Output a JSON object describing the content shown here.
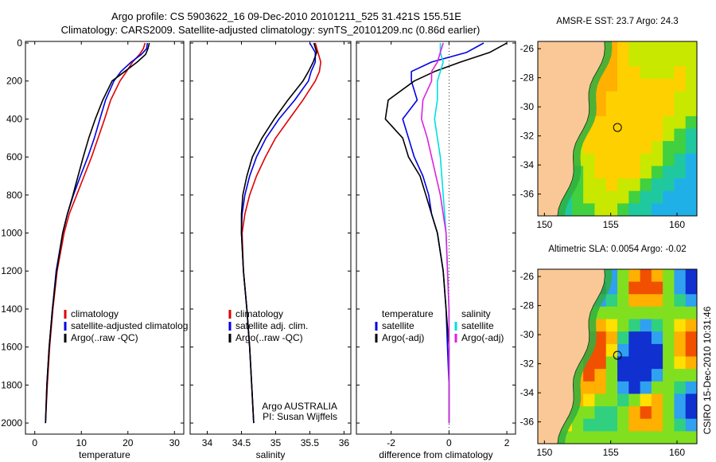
{
  "header": {
    "title_line1": "Argo profile: CS 5903622_16 09-Dec-2010 20101211_525 31.421S 155.51E",
    "title_line2": "Climatology: CARS2009. Satellite-adjusted climatology: synTS_20101209.nc (0.86d earlier)"
  },
  "colors": {
    "red": "#e00000",
    "blue": "#0000e6",
    "black": "#000000",
    "cyan": "#00e0e0",
    "magenta": "#e020e0"
  },
  "credit": "CSIRO 15-Dec-2010 10:31:46",
  "chart_data": [
    {
      "id": "temperature",
      "type": "line",
      "xlabel": "temperature",
      "xlim": [
        -2,
        32
      ],
      "ylim": [
        0,
        2050
      ],
      "y_inverted": true,
      "xticks": [
        0,
        10,
        20,
        30
      ],
      "yticks": [
        0,
        200,
        400,
        600,
        800,
        1000,
        1200,
        1400,
        1600,
        1800,
        2000
      ],
      "legend": {
        "position": "center-right",
        "entries": [
          {
            "label": "climatology",
            "color": "#e00000"
          },
          {
            "label": "satellite-adjusted climatolog",
            "color": "#0000e6"
          },
          {
            "label": "Argo(..raw -QC)",
            "color": "#000000"
          }
        ]
      },
      "series": [
        {
          "name": "climatology",
          "color": "#e00000",
          "depth": [
            0,
            30,
            60,
            100,
            150,
            200,
            300,
            400,
            500,
            600,
            700,
            800,
            900,
            1000,
            1200,
            1400,
            1600,
            1800,
            2000
          ],
          "values": [
            23.7,
            23.3,
            22.5,
            21.0,
            19.7,
            18.3,
            16.3,
            15.0,
            13.6,
            12.2,
            10.6,
            9.0,
            7.4,
            6.3,
            4.8,
            3.9,
            3.2,
            2.7,
            2.3
          ]
        },
        {
          "name": "satellite-adjusted climatology",
          "color": "#0000e6",
          "depth": [
            0,
            30,
            60,
            100,
            150,
            200,
            300,
            400,
            500,
            600,
            700,
            800,
            900,
            1000,
            1200,
            1400,
            1600,
            1800,
            2000
          ],
          "values": [
            24.2,
            24.0,
            22.9,
            20.7,
            18.5,
            17.0,
            15.2,
            14.0,
            12.8,
            11.4,
            9.8,
            8.3,
            7.0,
            6.0,
            4.6,
            3.8,
            3.1,
            2.6,
            2.3
          ]
        },
        {
          "name": "Argo(..raw -QC)",
          "color": "#000000",
          "depth": [
            0,
            30,
            60,
            100,
            150,
            200,
            300,
            400,
            500,
            600,
            700,
            800,
            900,
            1000,
            1200,
            1400,
            1600,
            1800,
            2000
          ],
          "values": [
            24.6,
            24.3,
            23.8,
            22.0,
            19.3,
            16.6,
            14.6,
            13.0,
            11.6,
            10.4,
            9.3,
            8.2,
            7.0,
            6.0,
            4.7,
            3.8,
            3.1,
            2.6,
            2.3
          ]
        }
      ]
    },
    {
      "id": "salinity",
      "type": "line",
      "xlabel": "salinity",
      "xlim": [
        33.75,
        36.1
      ],
      "ylim": [
        0,
        2050
      ],
      "y_inverted": true,
      "xticks": [
        34,
        34.5,
        35,
        35.5,
        36
      ],
      "legend": {
        "position": "center-right",
        "entries": [
          {
            "label": "climatology",
            "color": "#e00000"
          },
          {
            "label": "satellite adj. clim.",
            "color": "#0000e6"
          },
          {
            "label": "Argo(..raw -QC)",
            "color": "#000000"
          }
        ]
      },
      "annotations": [
        "Argo AUSTRALIA",
        "PI: Susan Wijffels"
      ],
      "series": [
        {
          "name": "climatology",
          "color": "#e00000",
          "depth": [
            0,
            50,
            100,
            150,
            200,
            300,
            400,
            500,
            600,
            700,
            800,
            900,
            1000,
            1200,
            1400,
            1600,
            1800,
            2000
          ],
          "values": [
            35.58,
            35.62,
            35.66,
            35.64,
            35.58,
            35.4,
            35.2,
            35.0,
            34.85,
            34.72,
            34.62,
            34.55,
            34.51,
            34.53,
            34.58,
            34.62,
            34.65,
            34.68
          ]
        },
        {
          "name": "satellite adj. clim.",
          "color": "#0000e6",
          "depth": [
            0,
            50,
            100,
            150,
            200,
            300,
            400,
            500,
            600,
            700,
            800,
            900,
            1000,
            1200,
            1400,
            1600,
            1800,
            2000
          ],
          "values": [
            35.5,
            35.58,
            35.58,
            35.52,
            35.48,
            35.28,
            35.05,
            34.86,
            34.72,
            34.62,
            34.55,
            34.51,
            34.5,
            34.53,
            34.58,
            34.62,
            34.65,
            34.68
          ]
        },
        {
          "name": "Argo(..raw -QC)",
          "color": "#000000",
          "depth": [
            0,
            50,
            100,
            150,
            200,
            300,
            400,
            500,
            600,
            700,
            800,
            900,
            1000,
            1200,
            1400,
            1600,
            1800,
            2000
          ],
          "values": [
            35.56,
            35.6,
            35.55,
            35.48,
            35.4,
            35.18,
            34.98,
            34.8,
            34.66,
            34.58,
            34.52,
            34.5,
            34.5,
            34.53,
            34.58,
            34.62,
            34.65,
            34.68
          ]
        }
      ]
    },
    {
      "id": "difference",
      "type": "line",
      "xlabel": "difference from climatology",
      "xlim": [
        -3.2,
        2.3
      ],
      "ylim": [
        0,
        2050
      ],
      "y_inverted": true,
      "xticks": [
        -2,
        0,
        2
      ],
      "legend": {
        "position": "center",
        "entries": [
          {
            "label": "temperature",
            "color": ""
          },
          {
            "label": "satellite",
            "color": "#0000e6"
          },
          {
            "label": "Argo(-adj)",
            "color": "#000000"
          },
          {
            "label": "salinity",
            "color": ""
          },
          {
            "label": "satellite",
            "color": "#00e0e0"
          },
          {
            "label": "Argo(-adj)",
            "color": "#e020e0"
          }
        ]
      },
      "series": [
        {
          "name": "temperature satellite",
          "color": "#0000e6",
          "depth": [
            0,
            50,
            100,
            150,
            200,
            300,
            400,
            500,
            600,
            700,
            800,
            900,
            1000,
            1200,
            1400,
            1600,
            1800,
            2000
          ],
          "values": [
            1.2,
            0.6,
            -0.6,
            -1.3,
            -1.3,
            -1.1,
            -1.6,
            -1.4,
            -1.2,
            -0.9,
            -0.7,
            -0.6,
            -0.4,
            -0.2,
            -0.1,
            -0.05,
            0,
            0
          ]
        },
        {
          "name": "temperature Argo(-adj)",
          "color": "#000000",
          "depth": [
            0,
            50,
            100,
            150,
            200,
            300,
            400,
            500,
            600,
            700,
            800,
            900,
            1000,
            1200,
            1400,
            1600,
            1800,
            2000
          ],
          "values": [
            2.0,
            1.4,
            0.4,
            -0.5,
            -1.2,
            -2.1,
            -2.2,
            -1.6,
            -1.4,
            -1.0,
            -0.8,
            -0.6,
            -0.4,
            -0.2,
            -0.1,
            0,
            0,
            0
          ]
        },
        {
          "name": "salinity satellite",
          "color": "#00e0e0",
          "depth": [
            0,
            50,
            100,
            150,
            200,
            300,
            400,
            500,
            600,
            700,
            800,
            900,
            1000,
            1200,
            1400,
            1600,
            1800,
            2000
          ],
          "values": [
            -0.3,
            -0.3,
            -0.2,
            -0.3,
            -0.4,
            -0.4,
            -0.5,
            -0.4,
            -0.3,
            -0.25,
            -0.2,
            -0.15,
            -0.1,
            -0.05,
            0,
            0,
            0,
            0
          ]
        },
        {
          "name": "salinity Argo(-adj)",
          "color": "#e020e0",
          "depth": [
            0,
            50,
            100,
            150,
            200,
            300,
            400,
            500,
            600,
            700,
            800,
            900,
            1000,
            1200,
            1400,
            1600,
            1800,
            2000
          ],
          "values": [
            -0.2,
            -0.3,
            -0.4,
            -0.6,
            -0.6,
            -0.9,
            -0.95,
            -0.75,
            -0.6,
            -0.45,
            -0.3,
            -0.2,
            -0.1,
            -0.05,
            0,
            0,
            0,
            0
          ]
        }
      ]
    },
    {
      "id": "sst_map",
      "type": "heatmap",
      "title": "AMSR-E SST: 23.7 Argo: 24.3",
      "xlim": [
        149.5,
        161.5
      ],
      "ylim": [
        -37.5,
        -25.5
      ],
      "xticks": [
        150,
        155,
        160
      ],
      "yticks": [
        -26,
        -28,
        -30,
        -32,
        -34,
        -36
      ],
      "float_position": {
        "lon": 155.51,
        "lat": -31.421
      }
    },
    {
      "id": "sla_map",
      "type": "heatmap",
      "title": "Altimetric SLA: 0.0054 Argo: -0.02",
      "xlim": [
        149.5,
        161.5
      ],
      "ylim": [
        -37.5,
        -25.5
      ],
      "xticks": [
        150,
        155,
        160
      ],
      "yticks": [
        -26,
        -28,
        -30,
        -32,
        -34,
        -36
      ],
      "float_position": {
        "lon": 155.51,
        "lat": -31.421
      }
    }
  ]
}
